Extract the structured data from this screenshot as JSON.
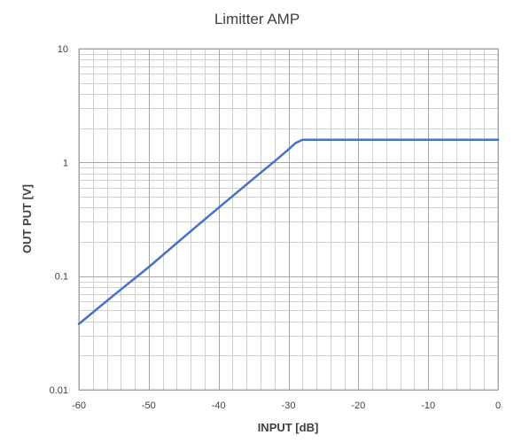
{
  "chart_data": {
    "type": "line",
    "title": "Limitter AMP",
    "xlabel": "INPUT [dB]",
    "ylabel": "OUT PUT [V]",
    "xlim": [
      -60,
      0
    ],
    "ylim": [
      0.01,
      10
    ],
    "yscale": "log",
    "grid": true,
    "x_ticks": [
      -60,
      -50,
      -40,
      -30,
      -20,
      -10,
      0
    ],
    "x_tick_labels": [
      "-60",
      "-50",
      "-40",
      "-30",
      "-20",
      "-10",
      "0"
    ],
    "y_ticks": [
      0.01,
      0.1,
      1,
      10
    ],
    "y_tick_labels": [
      "0.01",
      "0.1",
      "1",
      "10"
    ],
    "series": [
      {
        "color": "#4472c4",
        "x": [
          -60,
          -55,
          -50,
          -45,
          -40,
          -35,
          -32,
          -30,
          -29,
          -28,
          -20,
          -10,
          0
        ],
        "y": [
          0.038,
          0.068,
          0.12,
          0.22,
          0.4,
          0.72,
          1.02,
          1.3,
          1.48,
          1.58,
          1.58,
          1.58,
          1.58
        ]
      }
    ]
  }
}
